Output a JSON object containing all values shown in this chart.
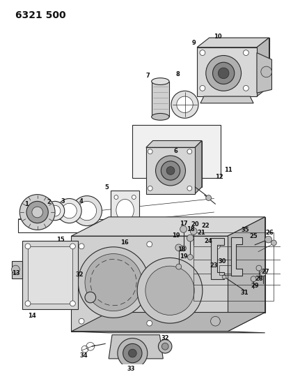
{
  "title": "6321 500",
  "bg_color": "#ffffff",
  "title_fontsize": 10,
  "fig_width": 4.08,
  "fig_height": 5.33,
  "dpi": 100,
  "line_color": "#2a2a2a",
  "label_fontsize": 6.0,
  "label_color": "#111111",
  "gray_light": "#d8d8d8",
  "gray_mid": "#bbbbbb",
  "gray_dark": "#999999",
  "white": "#ffffff"
}
